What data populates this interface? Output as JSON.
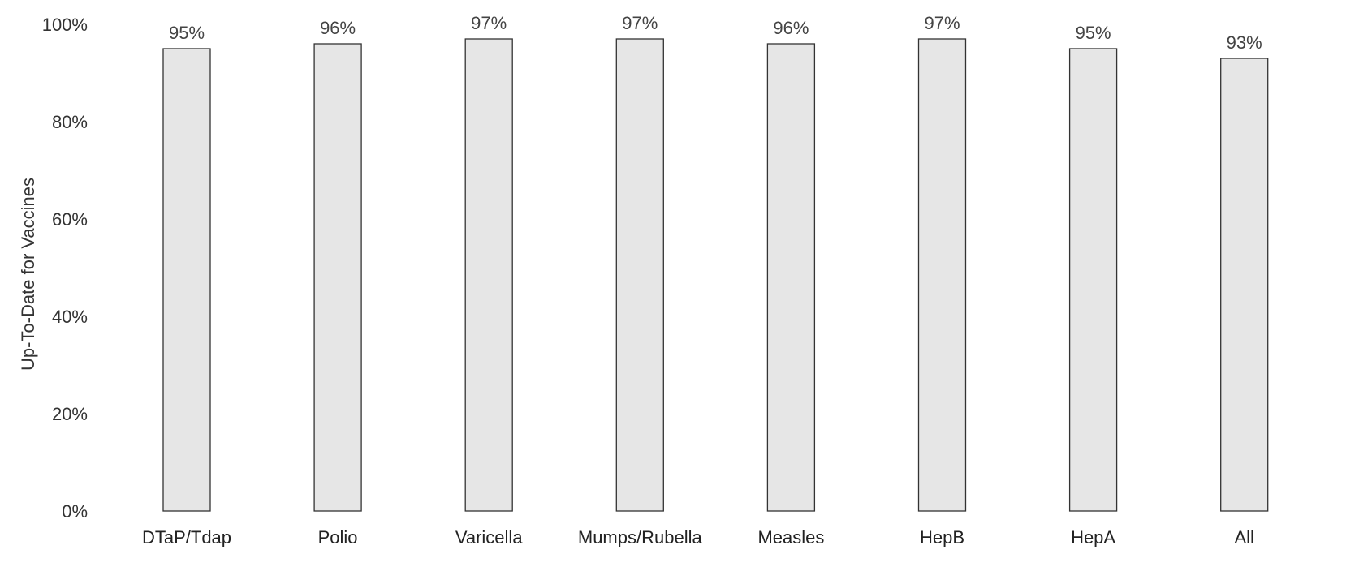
{
  "chart_data": {
    "type": "bar",
    "title": "",
    "xlabel": "",
    "ylabel": "Up-To-Date for Vaccines",
    "ylim": [
      0,
      100
    ],
    "y_ticks": [
      {
        "value": 0,
        "label": "0%"
      },
      {
        "value": 20,
        "label": "20%"
      },
      {
        "value": 40,
        "label": "40%"
      },
      {
        "value": 60,
        "label": "60%"
      },
      {
        "value": 80,
        "label": "80%"
      },
      {
        "value": 100,
        "label": "100%"
      }
    ],
    "categories": [
      "DTaP/Tdap",
      "Polio",
      "Varicella",
      "Mumps/Rubella",
      "Measles",
      "HepB",
      "HepA",
      "All"
    ],
    "values": [
      95,
      96,
      97,
      97,
      96,
      97,
      95,
      93
    ],
    "data_labels": [
      "95%",
      "96%",
      "97%",
      "97%",
      "96%",
      "97%",
      "95%",
      "93%"
    ],
    "bar_color": "#e6e6e6",
    "bar_edge_color": "#333333",
    "grid": false,
    "legend": "none"
  }
}
